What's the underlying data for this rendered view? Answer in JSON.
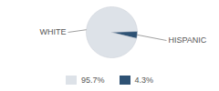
{
  "chart_data": {
    "type": "pie",
    "categories": [
      "WHITE",
      "HISPANIC"
    ],
    "values": [
      95.7,
      4.3
    ],
    "value_labels": [
      "95.7%",
      "4.3%"
    ],
    "colors": [
      "#dde2e8",
      "#2e5274"
    ],
    "legend": "bottom"
  }
}
